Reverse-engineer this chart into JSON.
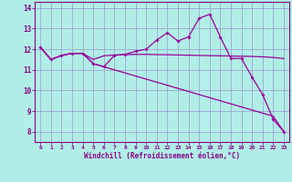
{
  "xlabel": "Windchill (Refroidissement éolien,°C)",
  "bg_color": "#b2eee8",
  "grid_color": "#9999cc",
  "line_color": "#990099",
  "xlim": [
    -0.5,
    23.5
  ],
  "ylim": [
    7.5,
    14.3
  ],
  "yticks": [
    8,
    9,
    10,
    11,
    12,
    13,
    14
  ],
  "xticks": [
    0,
    1,
    2,
    3,
    4,
    5,
    6,
    7,
    8,
    9,
    10,
    11,
    12,
    13,
    14,
    15,
    16,
    17,
    18,
    19,
    20,
    21,
    22,
    23
  ],
  "line1_x": [
    0,
    1,
    2,
    3,
    4,
    5,
    6,
    7,
    8,
    9,
    10,
    11,
    12,
    13,
    14,
    15,
    16,
    17,
    18,
    19,
    20,
    21,
    22,
    23
  ],
  "line1_y": [
    12.1,
    11.5,
    11.7,
    11.8,
    11.8,
    11.3,
    11.15,
    11.7,
    11.75,
    11.9,
    12.0,
    12.45,
    12.8,
    12.4,
    12.6,
    13.5,
    13.7,
    12.6,
    11.55,
    11.55,
    10.65,
    9.8,
    8.6,
    8.0
  ],
  "line2_x": [
    0,
    1,
    2,
    3,
    4,
    5,
    6,
    7,
    8,
    9,
    10,
    11,
    12,
    13,
    14,
    15,
    16,
    17,
    18,
    19,
    20,
    21,
    22,
    23
  ],
  "line2_y": [
    12.1,
    11.5,
    11.7,
    11.8,
    11.8,
    11.5,
    11.68,
    11.72,
    11.74,
    11.75,
    11.75,
    11.74,
    11.73,
    11.72,
    11.71,
    11.7,
    11.69,
    11.68,
    11.67,
    11.66,
    11.65,
    11.63,
    11.6,
    11.55
  ],
  "line3_x": [
    0,
    1,
    2,
    3,
    4,
    5,
    6,
    7,
    8,
    9,
    10,
    11,
    12,
    13,
    14,
    15,
    16,
    17,
    18,
    19,
    20,
    21,
    22,
    23
  ],
  "line3_y": [
    12.1,
    11.5,
    11.7,
    11.8,
    11.8,
    11.3,
    11.15,
    11.0,
    10.85,
    10.7,
    10.55,
    10.4,
    10.25,
    10.1,
    9.95,
    9.8,
    9.65,
    9.5,
    9.35,
    9.2,
    9.05,
    8.9,
    8.75,
    8.0
  ]
}
